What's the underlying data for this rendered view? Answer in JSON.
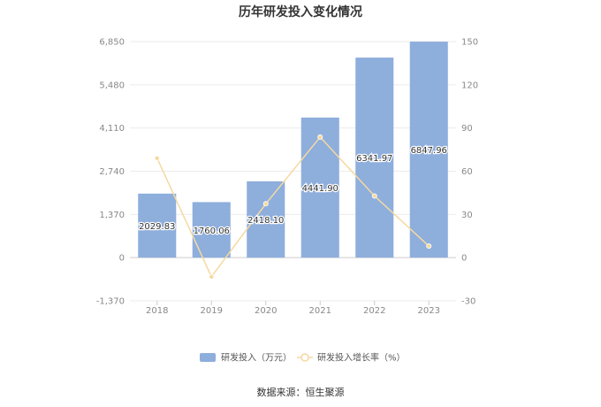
{
  "chart_data": {
    "type": "bar",
    "title": "历年研发投入变化情况",
    "categories": [
      "2018",
      "2019",
      "2020",
      "2021",
      "2022",
      "2023"
    ],
    "series": [
      {
        "name": "研发投入（万元）",
        "type": "bar",
        "axis": "left",
        "values": [
          2029.83,
          1760.06,
          2418.1,
          4441.9,
          6341.97,
          6847.96
        ],
        "labels": [
          "2029.83",
          "1760.06",
          "2418.10",
          "4441.90",
          "6341.97",
          "6847.96"
        ],
        "color": "#8eaedc"
      },
      {
        "name": "研发投入增长率（%）",
        "type": "line",
        "axis": "right",
        "values": [
          69,
          -13.3,
          37.4,
          83.7,
          42.8,
          8
        ],
        "color": "#f5d9a0"
      }
    ],
    "y_left": {
      "ticks": [
        -1370,
        0,
        1370,
        2740,
        4110,
        5480,
        6850
      ],
      "tick_labels": [
        "-1,370",
        "0",
        "1,370",
        "2,740",
        "4,110",
        "5,480",
        "6,850"
      ],
      "range": [
        -1370,
        6850
      ]
    },
    "y_right": {
      "ticks": [
        -30,
        0,
        30,
        60,
        90,
        120,
        150
      ],
      "tick_labels": [
        "-30",
        "0",
        "30",
        "60",
        "90",
        "120",
        "150"
      ],
      "range": [
        -30,
        150
      ]
    },
    "grid": true,
    "legend_position": "bottom"
  },
  "source": "数据来源：恒生聚源"
}
